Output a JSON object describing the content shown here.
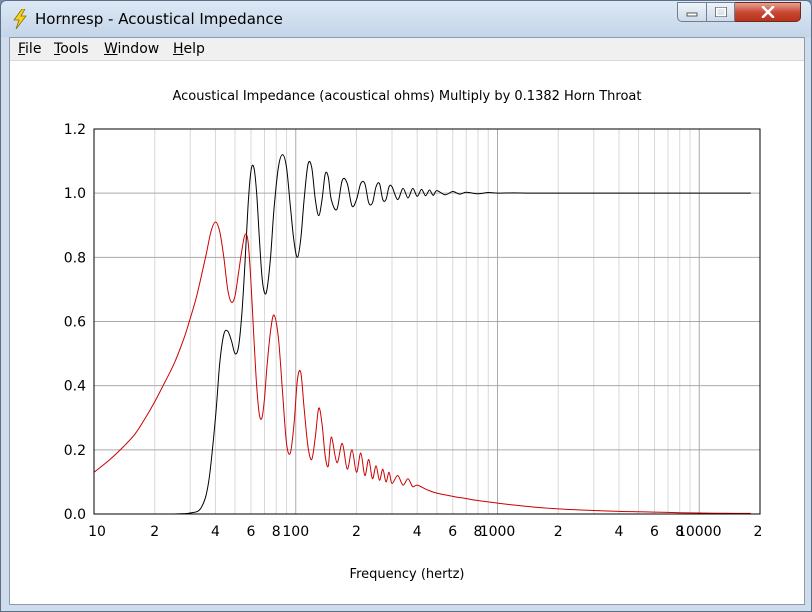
{
  "window": {
    "title": "Hornresp - Acoustical Impedance",
    "app_icon": "lightning-bolt-icon",
    "minimize_icon": "minimize-icon",
    "maximize_icon": "maximize-icon",
    "close_icon": "close-icon"
  },
  "menu": {
    "items": [
      {
        "label": "File"
      },
      {
        "label": "Tools"
      },
      {
        "label": "Window"
      },
      {
        "label": "Help"
      }
    ]
  },
  "colors": {
    "resistance": "#000000",
    "reactance": "#cc0000",
    "grid_major": "#aaaaaa",
    "grid_minor": "#d9d9d9",
    "title_bar": "#cfdcec",
    "close_button": "#c7452f"
  },
  "chart_data": {
    "type": "line",
    "title": "Acoustical Impedance (acoustical ohms)   Multiply by 0.1382   Horn Throat",
    "xlabel": "Frequency (hertz)",
    "ylabel": "",
    "x_scale": "log",
    "xlim": [
      10,
      20000
    ],
    "ylim": [
      0,
      1.2
    ],
    "grid": true,
    "x_tick_labels": [
      {
        "value": 10,
        "label": "10"
      },
      {
        "value": 20,
        "label": "2"
      },
      {
        "value": 40,
        "label": "4"
      },
      {
        "value": 60,
        "label": "6"
      },
      {
        "value": 80,
        "label": "8"
      },
      {
        "value": 100,
        "label": "100"
      },
      {
        "value": 200,
        "label": "2"
      },
      {
        "value": 400,
        "label": "4"
      },
      {
        "value": 600,
        "label": "6"
      },
      {
        "value": 800,
        "label": "8"
      },
      {
        "value": 1000,
        "label": "1000"
      },
      {
        "value": 2000,
        "label": "2"
      },
      {
        "value": 4000,
        "label": "4"
      },
      {
        "value": 6000,
        "label": "6"
      },
      {
        "value": 8000,
        "label": "8"
      },
      {
        "value": 10000,
        "label": "10000"
      },
      {
        "value": 20000,
        "label": "2"
      }
    ],
    "y_tick_labels": [
      {
        "value": 0,
        "label": "0.0"
      },
      {
        "value": 0.2,
        "label": "0.2"
      },
      {
        "value": 0.4,
        "label": "0.4"
      },
      {
        "value": 0.6,
        "label": "0.6"
      },
      {
        "value": 0.8,
        "label": "0.8"
      },
      {
        "value": 1.0,
        "label": "1.0"
      },
      {
        "value": 1.2,
        "label": "1.2"
      }
    ],
    "series": [
      {
        "color": "#000000",
        "x": [
          25,
          30,
          34,
          37,
          40,
          42,
          44,
          46,
          48,
          50,
          52,
          54,
          56,
          58,
          60,
          62,
          64,
          66,
          68,
          70,
          72,
          75,
          78,
          82,
          86,
          90,
          94,
          98,
          102,
          106,
          110,
          115,
          120,
          125,
          130,
          135,
          140,
          145,
          150,
          160,
          170,
          180,
          190,
          200,
          210,
          220,
          230,
          240,
          250,
          260,
          270,
          280,
          290,
          300,
          320,
          340,
          360,
          380,
          400,
          420,
          440,
          460,
          480,
          500,
          550,
          600,
          650,
          700,
          800,
          900,
          1000,
          1200,
          1500,
          2000,
          3000,
          5000,
          10000,
          18000
        ],
        "y": [
          0.0,
          0.003,
          0.02,
          0.1,
          0.3,
          0.47,
          0.56,
          0.57,
          0.54,
          0.5,
          0.52,
          0.62,
          0.78,
          0.96,
          1.07,
          1.08,
          1.0,
          0.86,
          0.74,
          0.69,
          0.7,
          0.8,
          0.95,
          1.08,
          1.12,
          1.08,
          0.96,
          0.85,
          0.8,
          0.86,
          0.98,
          1.09,
          1.08,
          0.98,
          0.93,
          0.98,
          1.06,
          1.05,
          0.98,
          0.95,
          1.04,
          1.03,
          0.96,
          0.98,
          1.03,
          1.03,
          0.97,
          0.97,
          1.02,
          1.03,
          0.98,
          0.98,
          1.02,
          1.02,
          0.98,
          1.015,
          0.985,
          1.015,
          0.99,
          1.012,
          0.992,
          1.01,
          0.993,
          1.008,
          0.995,
          1.005,
          0.997,
          1.003,
          0.998,
          1.002,
          1.0,
          1.001,
          1.0,
          1.0,
          1.0,
          1.0,
          1.0,
          1.0
        ]
      },
      {
        "color": "#cc0000",
        "x": [
          10,
          12,
          14,
          16,
          18,
          20,
          22,
          25,
          28,
          30,
          32,
          34,
          36,
          38,
          40,
          42,
          44,
          46,
          48,
          50,
          52,
          54,
          56,
          58,
          60,
          62,
          64,
          66,
          68,
          70,
          72,
          75,
          78,
          82,
          86,
          90,
          94,
          98,
          102,
          106,
          110,
          115,
          120,
          125,
          130,
          135,
          140,
          145,
          150,
          160,
          170,
          180,
          190,
          200,
          210,
          220,
          230,
          240,
          250,
          260,
          270,
          280,
          290,
          300,
          320,
          340,
          360,
          380,
          400,
          450,
          500,
          600,
          700,
          800,
          1000,
          1200,
          1500,
          2000,
          2500,
          3000,
          4000,
          5000,
          6000,
          8000,
          10000,
          12000,
          15000,
          18000
        ],
        "y": [
          0.13,
          0.17,
          0.21,
          0.25,
          0.3,
          0.35,
          0.4,
          0.47,
          0.55,
          0.61,
          0.67,
          0.74,
          0.81,
          0.88,
          0.91,
          0.88,
          0.8,
          0.7,
          0.66,
          0.68,
          0.75,
          0.82,
          0.87,
          0.85,
          0.72,
          0.55,
          0.4,
          0.31,
          0.3,
          0.36,
          0.46,
          0.57,
          0.62,
          0.55,
          0.38,
          0.22,
          0.19,
          0.28,
          0.42,
          0.44,
          0.33,
          0.21,
          0.17,
          0.24,
          0.33,
          0.28,
          0.18,
          0.15,
          0.24,
          0.16,
          0.22,
          0.14,
          0.2,
          0.13,
          0.19,
          0.12,
          0.17,
          0.11,
          0.15,
          0.105,
          0.14,
          0.1,
          0.13,
          0.095,
          0.12,
          0.09,
          0.11,
          0.085,
          0.09,
          0.075,
          0.065,
          0.055,
          0.048,
          0.042,
          0.034,
          0.028,
          0.022,
          0.016,
          0.013,
          0.011,
          0.008,
          0.007,
          0.006,
          0.004,
          0.003,
          0.0025,
          0.002,
          0.002
        ]
      }
    ]
  }
}
